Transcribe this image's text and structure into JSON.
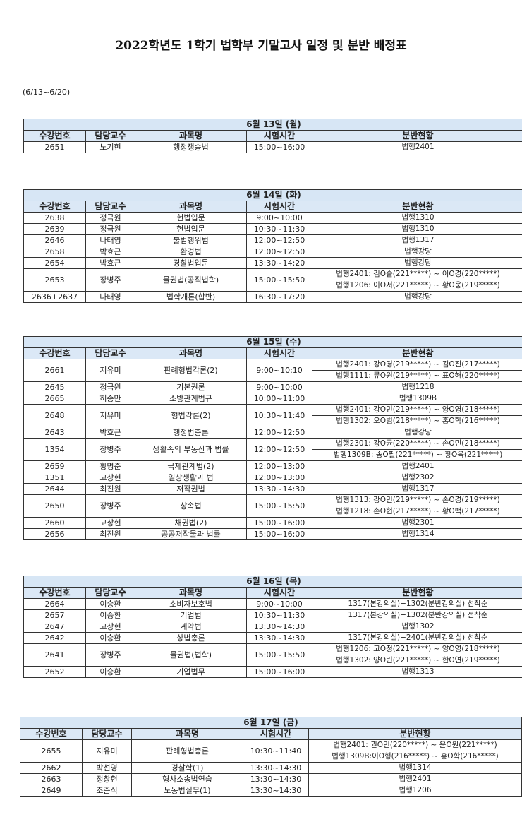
{
  "title": "2022학년도 1학기 법학부 기말고사 일정 및 분반 배정표",
  "date_range": "(6/13~6/20)",
  "headers": [
    "수강번호",
    "담당교수",
    "과목명",
    "시험시간",
    "분반현황"
  ],
  "days": [
    {
      "date": "6월 13일 (월)",
      "rows": [
        {
          "id": "2651",
          "prof": "노기현",
          "course": "행정쟁송법",
          "time": "15:00~16:00",
          "rooms": [
            "법행2401"
          ]
        }
      ]
    },
    {
      "date": "6월 14일 (화)",
      "rows": [
        {
          "id": "2638",
          "prof": "정극원",
          "course": "헌법입문",
          "time": "9:00~10:00",
          "rooms": [
            "법행1310"
          ]
        },
        {
          "id": "2639",
          "prof": "정극원",
          "course": "헌법입문",
          "time": "10:30~11:30",
          "rooms": [
            "법행1310"
          ]
        },
        {
          "id": "2646",
          "prof": "나태영",
          "course": "불법행위법",
          "time": "12:00~12:50",
          "rooms": [
            "법행1317"
          ]
        },
        {
          "id": "2658",
          "prof": "박효근",
          "course": "환경법",
          "time": "12:00~12:50",
          "rooms": [
            "법행강당"
          ]
        },
        {
          "id": "2654",
          "prof": "박효근",
          "course": "경찰법입문",
          "time": "13:30~14:20",
          "rooms": [
            "법행강당"
          ]
        },
        {
          "id": "2653",
          "prof": "장병주",
          "course": "물권법(공직법학)",
          "time": "15:00~15:50",
          "rooms": [
            "법행2401: 김O솔(221*****) ~ 이O경(220*****)",
            "법행1206: 이O서(221*****) ~ 황O웅(219*****)"
          ]
        },
        {
          "id": "2636+2637",
          "prof": "나태영",
          "course": "법학개론(합반)",
          "time": "16:30~17:20",
          "rooms": [
            "법행강당"
          ]
        }
      ]
    },
    {
      "date": "6월 15일 (수)",
      "rows": [
        {
          "id": "2661",
          "prof": "지유미",
          "course": "판례형법각론(2)",
          "time": "9:00~10:10",
          "rooms": [
            "법행2401: 강O경(219*****) ~ 김O진(217*****)",
            "법행1111: 류O원(219*****) ~ 표O해(220*****)"
          ]
        },
        {
          "id": "2645",
          "prof": "정극원",
          "course": "기본권론",
          "time": "9:00~10:00",
          "rooms": [
            "법행1218"
          ]
        },
        {
          "id": "2665",
          "prof": "허종만",
          "course": "소방관계법규",
          "time": "10:00~11:00",
          "rooms": [
            "법행1309B"
          ]
        },
        {
          "id": "2648",
          "prof": "지유미",
          "course": "형법각론(2)",
          "time": "10:30~11:40",
          "rooms": [
            "법행2401: 강O민(219*****) ~ 양O영(218*****)",
            "법행1302: 오O범(218*****) ~ 홍O학(216*****)"
          ]
        },
        {
          "id": "2643",
          "prof": "박효근",
          "course": "행정법총론",
          "time": "12:00~12:50",
          "rooms": [
            "법행강당"
          ]
        },
        {
          "id": "1354",
          "prof": "장병주",
          "course": "생활속의 부동산과 법률",
          "time": "12:00~12:50",
          "rooms": [
            "법행2301: 강O균(220*****) ~ 손O민(218*****)",
            "법행1309B: 송O필(221*****) ~ 황O욱(221*****)"
          ]
        },
        {
          "id": "2659",
          "prof": "황명준",
          "course": "국제관계법(2)",
          "time": "12:00~13:00",
          "rooms": [
            "법행2401"
          ]
        },
        {
          "id": "1351",
          "prof": "고상현",
          "course": "일상생활과 법",
          "time": "12:00~13:00",
          "rooms": [
            "법행2302"
          ]
        },
        {
          "id": "2644",
          "prof": "최진원",
          "course": "저작권법",
          "time": "13:30~14:30",
          "rooms": [
            "법행1317"
          ]
        },
        {
          "id": "2650",
          "prof": "장병주",
          "course": "상속법",
          "time": "15:00~15:50",
          "rooms": [
            "법행1313: 강O민(219*****) ~ 손O경(219*****)",
            "법행1218: 손O현(217*****) ~ 황O백(217*****)"
          ]
        },
        {
          "id": "2660",
          "prof": "고상현",
          "course": "채권법(2)",
          "time": "15:00~16:00",
          "rooms": [
            "법행2301"
          ]
        },
        {
          "id": "2656",
          "prof": "최진원",
          "course": "공공저작물과 법률",
          "time": "15:00~16:00",
          "rooms": [
            "법행1314"
          ]
        }
      ]
    },
    {
      "date": "6월 16일 (목)",
      "rows": [
        {
          "id": "2664",
          "prof": "이승환",
          "course": "소비자보호법",
          "time": "9:00~10:00",
          "rooms": [
            "1317(본강의실)+1302(분반강의실) 선착순"
          ]
        },
        {
          "id": "2657",
          "prof": "이승환",
          "course": "기업법",
          "time": "10:30~11:30",
          "rooms": [
            "1317(본강의실)+1302(분반강의실) 선착순"
          ]
        },
        {
          "id": "2647",
          "prof": "고상현",
          "course": "계약법",
          "time": "13:30~14:30",
          "rooms": [
            "법행1302"
          ]
        },
        {
          "id": "2642",
          "prof": "이승환",
          "course": "상법총론",
          "time": "13:30~14:30",
          "rooms": [
            "1317(본강의실)+2401(분반강의실) 선착순"
          ]
        },
        {
          "id": "2641",
          "prof": "장병주",
          "course": "물권법(법학)",
          "time": "15:00~15:50",
          "rooms": [
            "법행1206: 고O정(221*****) ~ 양O영(218*****)",
            "법행1302: 양O린(221*****) ~ 한O연(219*****)"
          ]
        },
        {
          "id": "2652",
          "prof": "이승환",
          "course": "기업법무",
          "time": "15:00~16:00",
          "rooms": [
            "법행1313"
          ]
        }
      ]
    },
    {
      "date": "6월 17일 (금)",
      "rows": [
        {
          "id": "2655",
          "prof": "지유미",
          "course": "판례형법총론",
          "time": "10:30~11:40",
          "rooms": [
            "법행2401: 권O민(220*****) ~ 윤O원(221*****)",
            "법행1309B:이O형(216*****) ~ 홍O학(216*****)"
          ]
        },
        {
          "id": "2662",
          "prof": "박선영",
          "course": "경찰학(1)",
          "time": "13:30~14:30",
          "rooms": [
            "법행1314"
          ]
        },
        {
          "id": "2663",
          "prof": "정창헌",
          "course": "형사소송법연습",
          "time": "13:30~14:30",
          "rooms": [
            "법행2401"
          ]
        },
        {
          "id": "2649",
          "prof": "조준식",
          "course": "노동법실무(1)",
          "time": "13:30~14:30",
          "rooms": [
            "법행1206"
          ]
        }
      ]
    }
  ]
}
